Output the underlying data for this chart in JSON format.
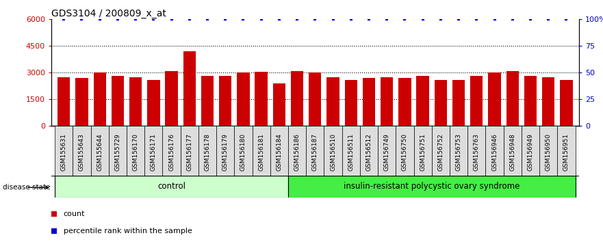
{
  "title": "GDS3104 / 200809_x_at",
  "samples": [
    "GSM155631",
    "GSM155643",
    "GSM155644",
    "GSM155729",
    "GSM156170",
    "GSM156171",
    "GSM156176",
    "GSM156177",
    "GSM156178",
    "GSM156179",
    "GSM156180",
    "GSM156181",
    "GSM156184",
    "GSM156186",
    "GSM156187",
    "GSM156510",
    "GSM156511",
    "GSM156512",
    "GSM156749",
    "GSM156750",
    "GSM156751",
    "GSM156752",
    "GSM156753",
    "GSM156763",
    "GSM156946",
    "GSM156948",
    "GSM156949",
    "GSM156950",
    "GSM156951"
  ],
  "counts": [
    2750,
    2700,
    3000,
    2800,
    2750,
    2600,
    3100,
    4200,
    2800,
    2800,
    3000,
    3050,
    2400,
    3100,
    3000,
    2750,
    2600,
    2700,
    2750,
    2700,
    2800,
    2600,
    2600,
    2800,
    3000,
    3100,
    2800,
    2750,
    2600
  ],
  "percentile_ranks": [
    100,
    100,
    100,
    100,
    100,
    100,
    100,
    100,
    100,
    100,
    100,
    100,
    100,
    100,
    100,
    100,
    100,
    100,
    100,
    100,
    100,
    100,
    100,
    100,
    100,
    100,
    100,
    100,
    100
  ],
  "control_count": 13,
  "bar_color": "#cc0000",
  "percentile_color": "#0000cc",
  "control_bg": "#ccffcc",
  "disease_bg": "#44ee44",
  "label_bg": "#dddddd",
  "ylim_left": [
    0,
    6000
  ],
  "ylim_right": [
    0,
    100
  ],
  "yticks_left": [
    0,
    1500,
    3000,
    4500,
    6000
  ],
  "ytick_labels_left": [
    "0",
    "1500",
    "3000",
    "4500",
    "6000"
  ],
  "yticks_right": [
    0,
    25,
    50,
    75,
    100
  ],
  "ytick_labels_right": [
    "0",
    "25",
    "50",
    "75",
    "100%"
  ],
  "grid_values": [
    1500,
    3000,
    4500
  ],
  "legend_count_label": "count",
  "legend_pct_label": "percentile rank within the sample",
  "disease_state_label": "disease state",
  "control_label": "control",
  "disease_label": "insulin-resistant polycystic ovary syndrome"
}
